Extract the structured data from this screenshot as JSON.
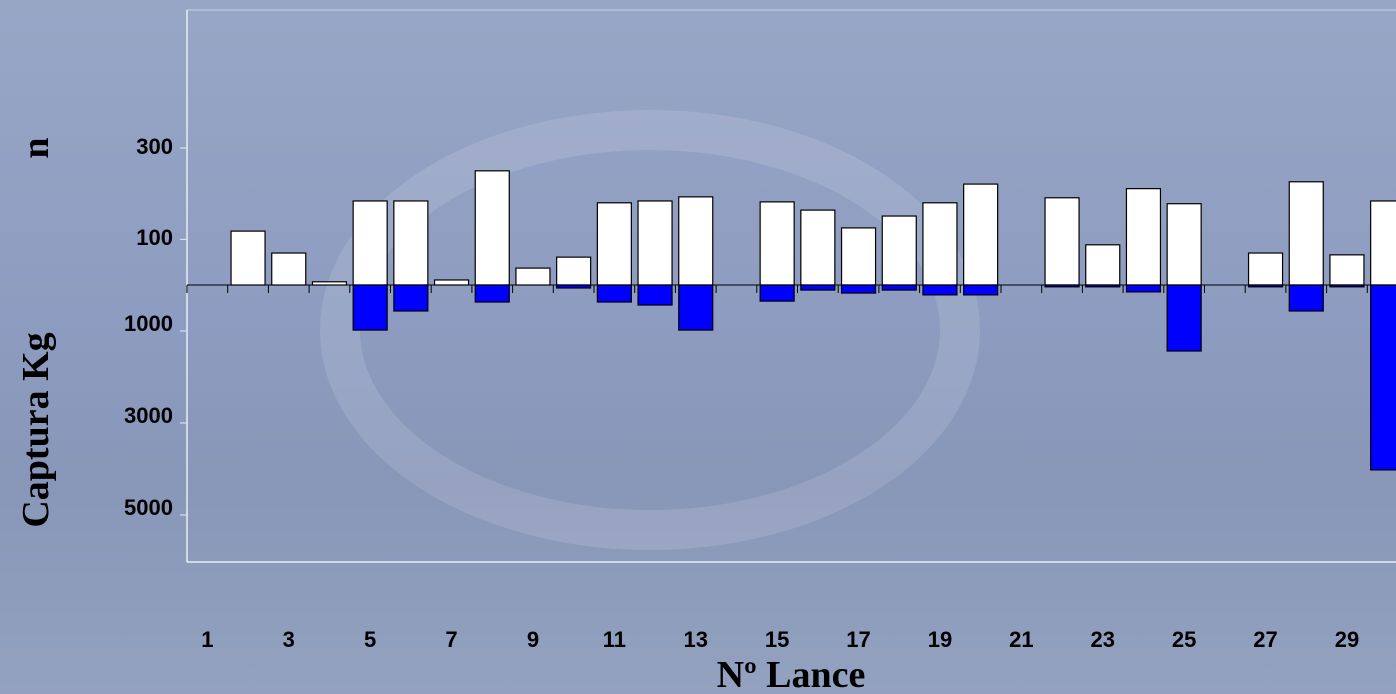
{
  "chart_data": {
    "type": "bar",
    "xlabel": "Nº Lance",
    "ylabel": "n",
    "y2label": "Captura Kg",
    "categories": [
      "1",
      null,
      "3",
      null,
      "5",
      null,
      "7",
      null,
      "9",
      null,
      "11",
      null,
      "13",
      null,
      "15",
      null,
      "17",
      null,
      "19",
      null,
      "21",
      null,
      "23",
      null,
      "25",
      null,
      "27",
      null,
      "29",
      null
    ],
    "ylim": [
      0,
      600
    ],
    "yticks": [
      100,
      300
    ],
    "y2lim": [
      0,
      6000
    ],
    "y2ticks": [
      1000,
      3000,
      5000
    ],
    "series": [
      {
        "name": "n",
        "color": "#ffffff",
        "values": [
          0,
          118,
          70,
          7,
          184,
          184,
          11,
          250,
          37,
          61,
          180,
          184,
          193,
          0,
          182,
          164,
          125,
          151,
          180,
          221,
          0,
          191,
          88,
          211,
          178,
          0,
          70,
          226,
          66,
          184
        ]
      },
      {
        "name": "Captura Kg",
        "color": "#0000ff",
        "axis": "y2",
        "values": [
          0,
          0,
          0,
          0,
          980,
          565,
          0,
          370,
          0,
          65,
          370,
          435,
          980,
          0,
          350,
          110,
          175,
          110,
          215,
          215,
          0,
          40,
          40,
          150,
          1435,
          0,
          40,
          565,
          40,
          4020
        ]
      }
    ]
  }
}
